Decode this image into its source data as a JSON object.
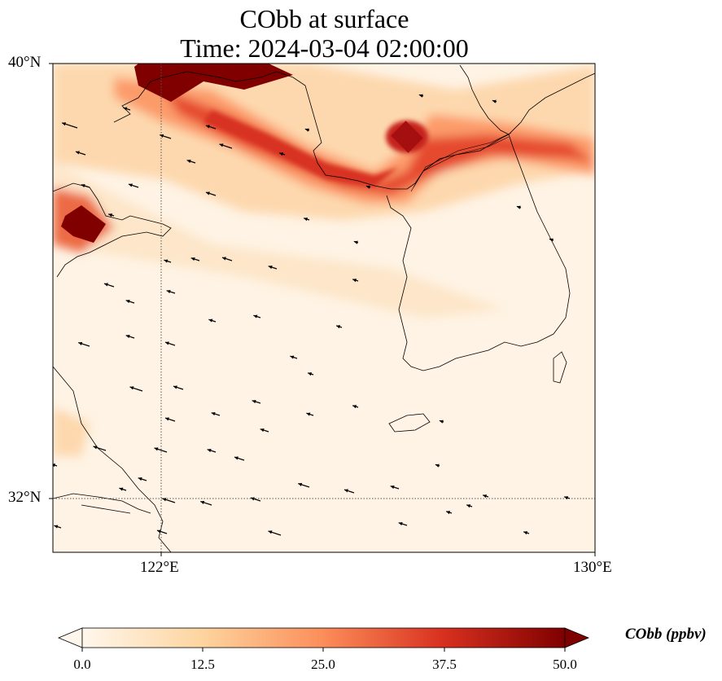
{
  "title": {
    "line1": "CObb at surface",
    "line2": "Time: 2024-03-04 02:00:00"
  },
  "axes": {
    "lat_labels": [
      "40°N",
      "32°N"
    ],
    "lon_labels": [
      "122°E",
      "130°E"
    ],
    "lat_range": [
      31,
      40
    ],
    "lon_range": [
      120,
      130
    ],
    "gridlines": "dotted at 122°E and 32°N"
  },
  "colorbar": {
    "label": "CObb (ppbv)",
    "ticks": [
      "0.0",
      "12.5",
      "25.0",
      "37.5",
      "50.0"
    ],
    "colormap": "OrRd",
    "vmin": 0,
    "vmax": 50,
    "extend": "both",
    "colors": [
      "#fff7ec",
      "#fdd49e",
      "#fc8d59",
      "#d7301f",
      "#7f0000"
    ]
  },
  "map_features": {
    "region": "Yellow Sea, Korean Peninsula, Shandong and Liaodong",
    "vectors": "wind arrows pointing mostly north-west",
    "plume_description": "high CObb band from Liaodong coast across Bohai to North Korea, hotspots near 39.8°N 121.5°E and 37.8°N 120.5°E"
  }
}
